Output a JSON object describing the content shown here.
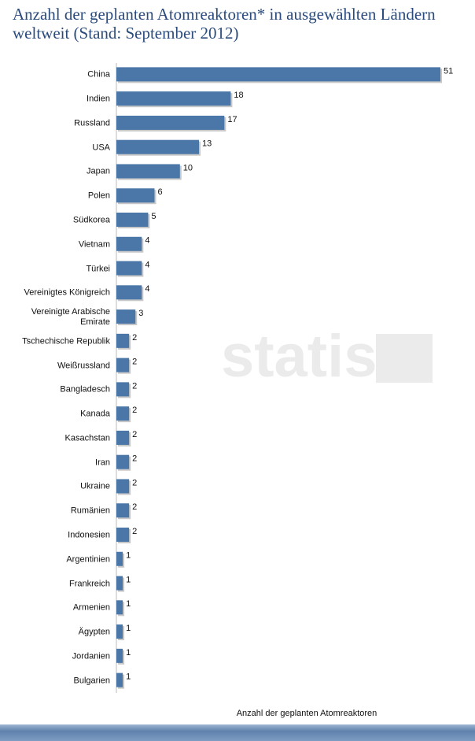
{
  "chart_data": {
    "type": "bar",
    "orientation": "horizontal",
    "title": "Anzahl der geplanten Atomreaktoren* in ausgewählten Ländern weltweit (Stand: September 2012)",
    "x_label": "Anzahl der geplanten Atomreaktoren",
    "watermark": "statista",
    "categories": [
      "China",
      "Indien",
      "Russland",
      "USA",
      "Japan",
      "Polen",
      "Südkorea",
      "Vietnam",
      "Türkei",
      "Vereinigtes Königreich",
      "Vereinigte Arabische Emirate",
      "Tschechische Republik",
      "Weißrussland",
      "Bangladesch",
      "Kanada",
      "Kasachstan",
      "Iran",
      "Ukraine",
      "Rumänien",
      "Indonesien",
      "Argentinien",
      "Frankreich",
      "Armenien",
      "Ägypten",
      "Jordanien",
      "Bulgarien"
    ],
    "values": [
      51,
      18,
      17,
      13,
      10,
      6,
      5,
      4,
      4,
      4,
      3,
      2,
      2,
      2,
      2,
      2,
      2,
      2,
      2,
      2,
      1,
      1,
      1,
      1,
      1,
      1
    ],
    "color": "#4a77a8",
    "xlim": [
      0,
      51
    ],
    "grid": true
  }
}
